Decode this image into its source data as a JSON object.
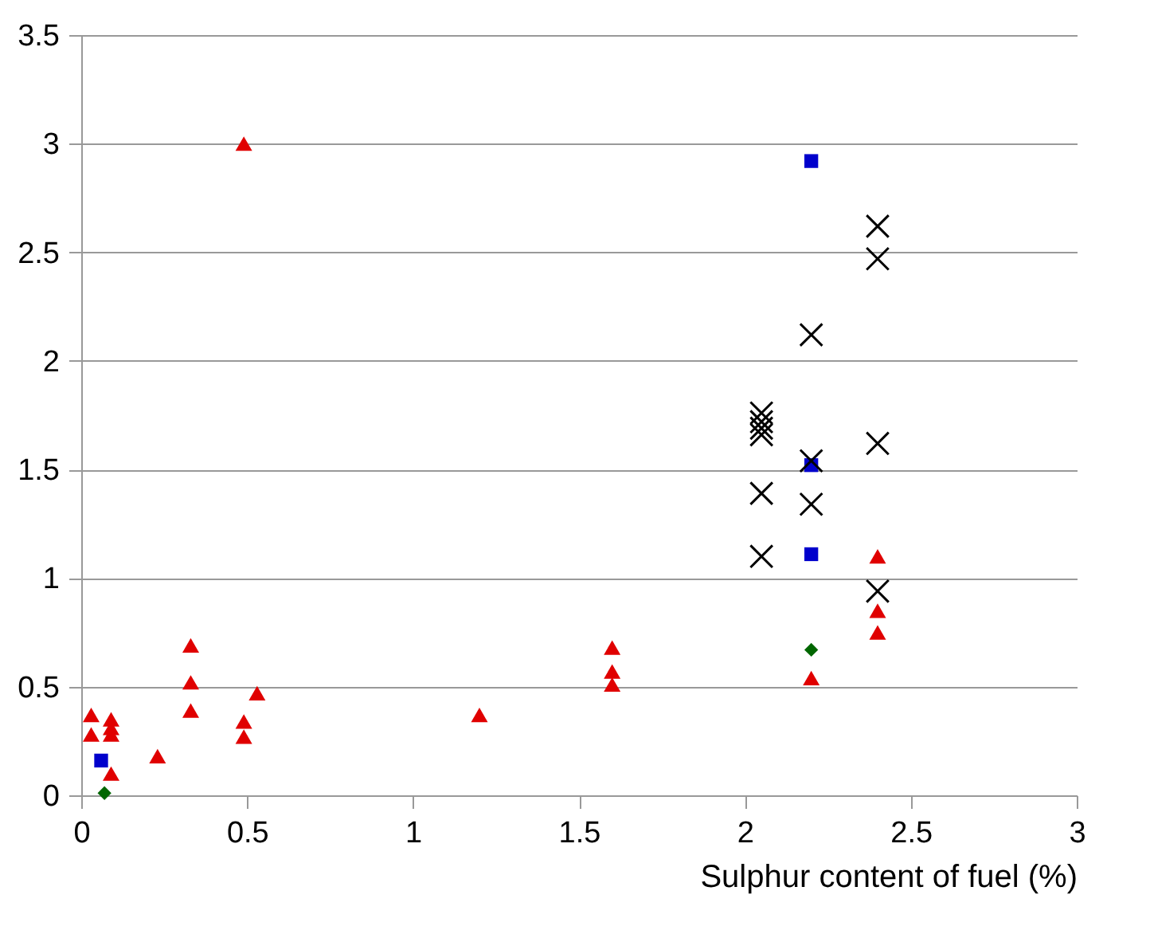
{
  "chart_data": {
    "type": "scatter",
    "xlabel": "Sulphur content of fuel (%)",
    "xlim": [
      0,
      3
    ],
    "xticks": [
      0,
      0.5,
      1,
      1.5,
      2,
      2.5,
      3
    ],
    "ylim": [
      0,
      3.5
    ],
    "yticks": [
      0,
      0.5,
      1,
      1.5,
      2,
      2.5,
      3,
      3.5
    ],
    "grid": "y",
    "series": [
      {
        "color": "#e00000",
        "marker": "triangle",
        "x": [
          0.03,
          0.03,
          0.09,
          0.09,
          0.09,
          0.09,
          0.23,
          0.33,
          0.33,
          0.33,
          0.49,
          0.49,
          0.49,
          0.53,
          1.2,
          1.6,
          1.6,
          1.6,
          2.2,
          2.4,
          2.4,
          2.4
        ],
        "values": [
          0.37,
          0.28,
          0.35,
          0.31,
          0.28,
          0.1,
          0.18,
          0.69,
          0.52,
          0.39,
          0.34,
          0.27,
          3.0,
          0.47,
          0.37,
          0.68,
          0.57,
          0.51,
          0.54,
          1.1,
          0.85,
          0.75
        ]
      },
      {
        "color": "#0000cc",
        "marker": "square",
        "x": [
          0.06,
          2.2,
          2.2,
          2.2
        ],
        "values": [
          0.16,
          2.92,
          1.52,
          1.11
        ]
      },
      {
        "color": "#006600",
        "marker": "diamond",
        "x": [
          0.07,
          2.2
        ],
        "values": [
          0.01,
          0.67
        ]
      },
      {
        "color": "#000000",
        "marker": "cross",
        "x": [
          2.05,
          2.05,
          2.05,
          2.05,
          2.05,
          2.05,
          2.2,
          2.2,
          2.2,
          2.4,
          2.4,
          2.4,
          2.4
        ],
        "values": [
          1.76,
          1.72,
          1.69,
          1.66,
          1.39,
          1.1,
          2.12,
          1.54,
          1.34,
          2.62,
          2.47,
          1.62,
          0.94
        ]
      }
    ]
  }
}
